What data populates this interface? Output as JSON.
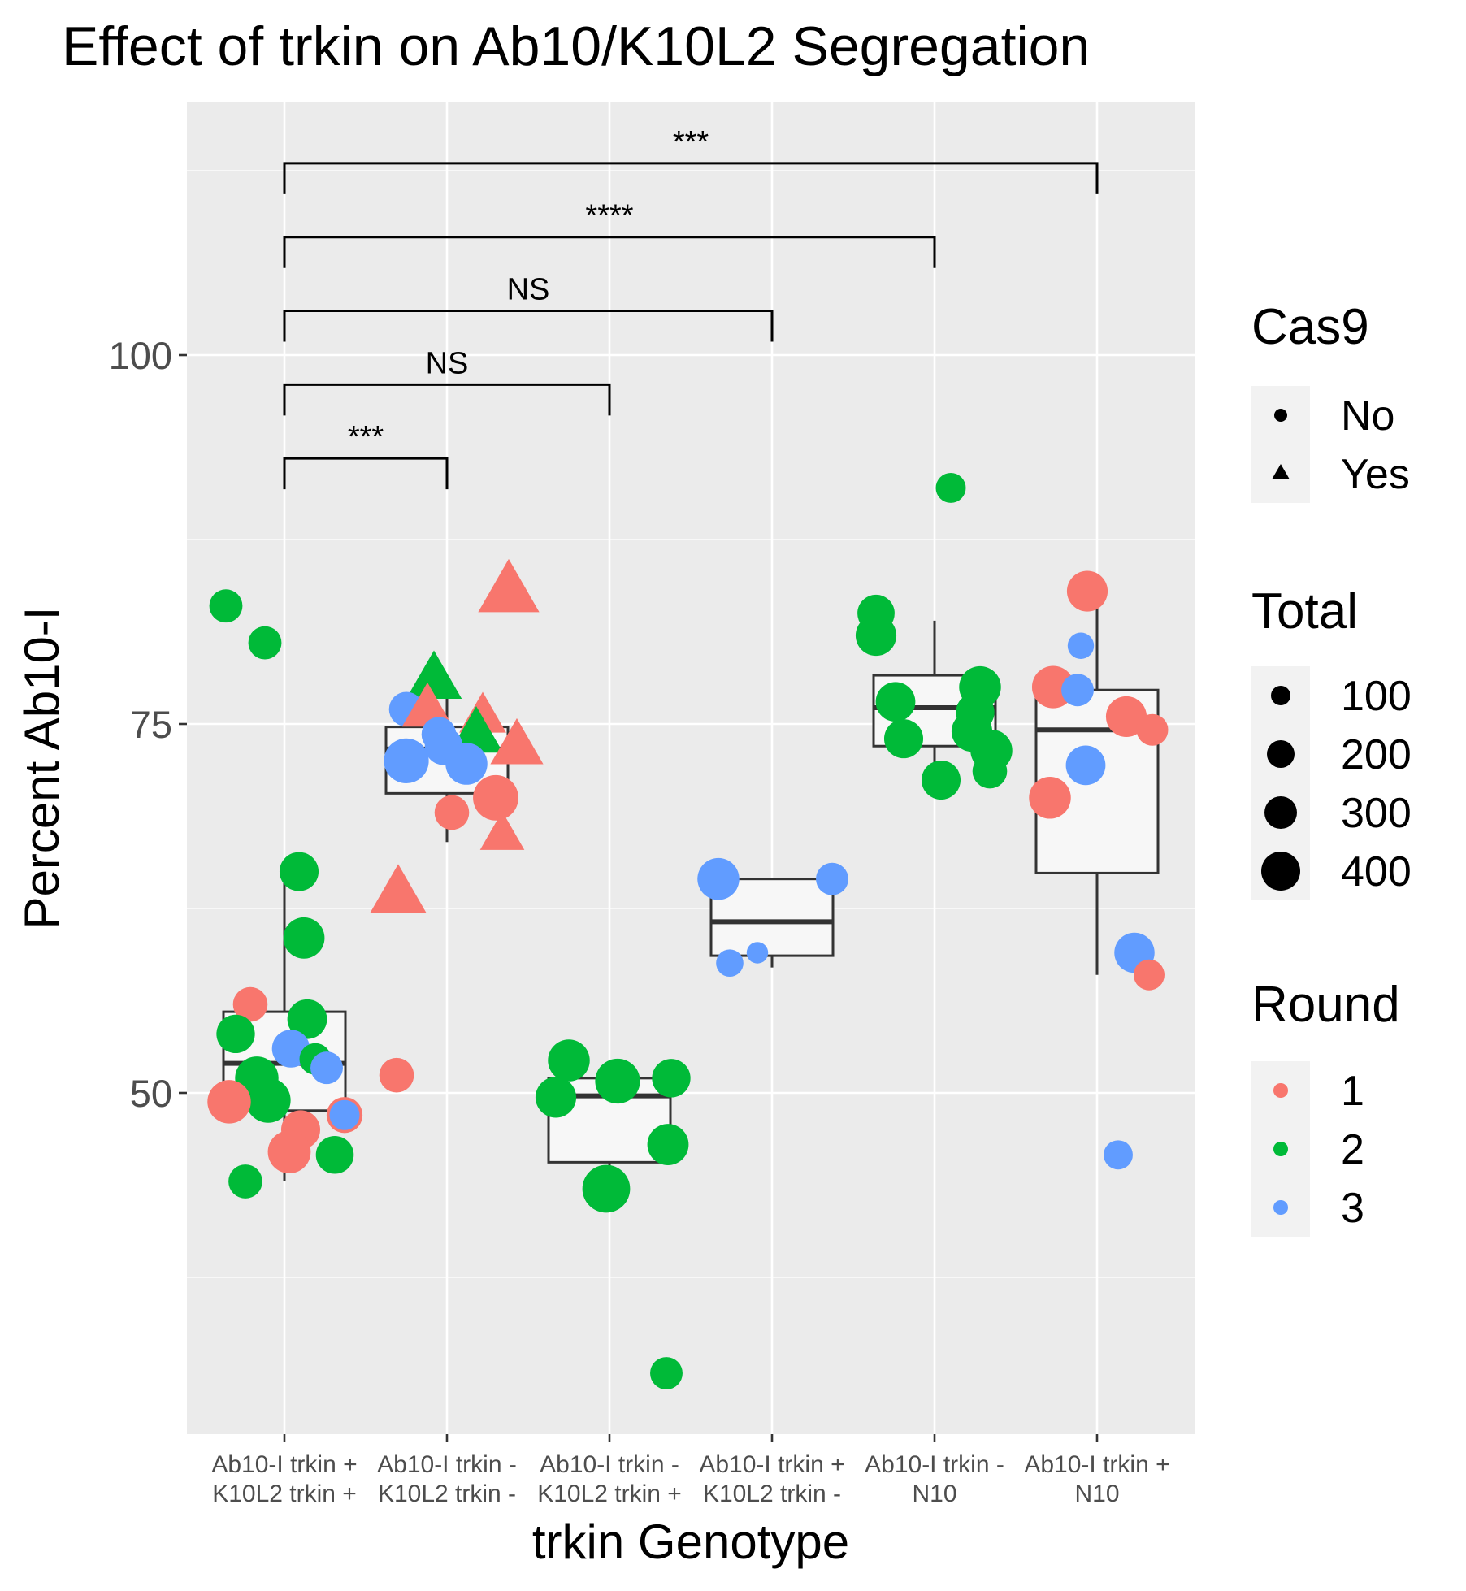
{
  "chart_data": {
    "type": "boxplot",
    "title": "Effect of trkin on Ab10/K10L2 Segregation",
    "xlabel": "trkin Genotype",
    "ylabel": "Percent Ab10-I",
    "ylim": [
      30,
      115
    ],
    "yticks": [
      50,
      75,
      100
    ],
    "categories": [
      [
        "Ab10-I trkin +",
        "K10L2 trkin +"
      ],
      [
        "Ab10-I trkin -",
        "K10L2 trkin -"
      ],
      [
        "Ab10-I trkin -",
        "K10L2 trkin +"
      ],
      [
        "Ab10-I trkin +",
        "K10L2 trkin -"
      ],
      [
        "Ab10-I trkin -",
        "N10"
      ],
      [
        "Ab10-I trkin +",
        "N10"
      ]
    ],
    "boxes": [
      {
        "whisker_low": 44,
        "q1": 48.8,
        "median": 52,
        "q3": 55.5,
        "whisker_high": 65
      },
      {
        "whisker_low": 67,
        "q1": 70.3,
        "median": 73.3,
        "q3": 74.8,
        "whisker_high": 77
      },
      {
        "whisker_low": 44,
        "q1": 45.3,
        "median": 49.8,
        "q3": 51,
        "whisker_high": 52
      },
      {
        "whisker_low": 58.5,
        "q1": 59.3,
        "median": 61.6,
        "q3": 64.5,
        "whisker_high": 64.5
      },
      {
        "whisker_low": 71,
        "q1": 73.5,
        "median": 76.1,
        "q3": 78.3,
        "whisker_high": 82
      },
      {
        "whisker_low": 58,
        "q1": 64.9,
        "median": 74.6,
        "q3": 77.3,
        "whisker_high": 84
      }
    ],
    "round_colors": {
      "1": "#F8766D",
      "2": "#00BA38",
      "3": "#619CFF"
    },
    "points": [
      {
        "x": 1,
        "dx": -0.36,
        "y": 83,
        "round": 2,
        "cas9": "No",
        "total": 160
      },
      {
        "x": 1,
        "dx": -0.12,
        "y": 80.5,
        "round": 2,
        "cas9": "No",
        "total": 160
      },
      {
        "x": 1,
        "dx": 0.09,
        "y": 65,
        "round": 2,
        "cas9": "No",
        "total": 250
      },
      {
        "x": 1,
        "dx": 0.12,
        "y": 60.5,
        "round": 2,
        "cas9": "No",
        "total": 290
      },
      {
        "x": 1,
        "dx": -0.21,
        "y": 56,
        "round": 1,
        "cas9": "No",
        "total": 180
      },
      {
        "x": 1,
        "dx": 0.14,
        "y": 55,
        "round": 2,
        "cas9": "No",
        "total": 260
      },
      {
        "x": 1,
        "dx": -0.3,
        "y": 54,
        "round": 2,
        "cas9": "No",
        "total": 240
      },
      {
        "x": 1,
        "dx": 0.04,
        "y": 53,
        "round": 3,
        "cas9": "No",
        "total": 230
      },
      {
        "x": 1,
        "dx": 0.19,
        "y": 52.3,
        "round": 2,
        "cas9": "No",
        "total": 140
      },
      {
        "x": 1,
        "dx": 0.26,
        "y": 51.7,
        "round": 3,
        "cas9": "No",
        "total": 150
      },
      {
        "x": 1,
        "dx": -0.17,
        "y": 51,
        "round": 2,
        "cas9": "No",
        "total": 330
      },
      {
        "x": 1,
        "dx": -0.1,
        "y": 49.5,
        "round": 2,
        "cas9": "No",
        "total": 360
      },
      {
        "x": 1,
        "dx": -0.34,
        "y": 49.4,
        "round": 1,
        "cas9": "No",
        "total": 330
      },
      {
        "x": 1,
        "dx": 0.37,
        "y": 48.5,
        "round": 1,
        "cas9": "No",
        "total": 200
      },
      {
        "x": 1,
        "dx": 0.37,
        "y": 48.5,
        "round": 3,
        "cas9": "No",
        "total": 120
      },
      {
        "x": 1,
        "dx": 0.1,
        "y": 47.5,
        "round": 1,
        "cas9": "No",
        "total": 250
      },
      {
        "x": 1,
        "dx": 0.03,
        "y": 46,
        "round": 1,
        "cas9": "No",
        "total": 320
      },
      {
        "x": 1,
        "dx": 0.31,
        "y": 45.8,
        "round": 2,
        "cas9": "No",
        "total": 230
      },
      {
        "x": 1,
        "dx": -0.24,
        "y": 44,
        "round": 2,
        "cas9": "No",
        "total": 170
      },
      {
        "x": 2,
        "dx": 0.38,
        "y": 84,
        "round": 1,
        "cas9": "Yes",
        "total": 420
      },
      {
        "x": 2,
        "dx": -0.08,
        "y": 78,
        "round": 2,
        "cas9": "Yes",
        "total": 330
      },
      {
        "x": 2,
        "dx": -0.25,
        "y": 76,
        "round": 3,
        "cas9": "No",
        "total": 180
      },
      {
        "x": 2,
        "dx": -0.12,
        "y": 76,
        "round": 1,
        "cas9": "Yes",
        "total": 260
      },
      {
        "x": 2,
        "dx": 0.22,
        "y": 75.5,
        "round": 1,
        "cas9": "Yes",
        "total": 210
      },
      {
        "x": 2,
        "dx": 0.18,
        "y": 74.3,
        "round": 2,
        "cas9": "Yes",
        "total": 300
      },
      {
        "x": 2,
        "dx": -0.05,
        "y": 74.3,
        "round": 3,
        "cas9": "No",
        "total": 180
      },
      {
        "x": 2,
        "dx": 0.43,
        "y": 73.5,
        "round": 1,
        "cas9": "Yes",
        "total": 290
      },
      {
        "x": 2,
        "dx": -0.02,
        "y": 73.5,
        "round": 3,
        "cas9": "No",
        "total": 230
      },
      {
        "x": 2,
        "dx": -0.25,
        "y": 72.5,
        "round": 3,
        "cas9": "No",
        "total": 360
      },
      {
        "x": 2,
        "dx": 0.12,
        "y": 72.3,
        "round": 3,
        "cas9": "No",
        "total": 300
      },
      {
        "x": 2,
        "dx": 0.3,
        "y": 70,
        "round": 1,
        "cas9": "No",
        "total": 370
      },
      {
        "x": 2,
        "dx": 0.03,
        "y": 69,
        "round": 1,
        "cas9": "No",
        "total": 180
      },
      {
        "x": 2,
        "dx": 0.34,
        "y": 67.5,
        "round": 1,
        "cas9": "Yes",
        "total": 180
      },
      {
        "x": 2,
        "dx": -0.3,
        "y": 63.5,
        "round": 1,
        "cas9": "Yes",
        "total": 340
      },
      {
        "x": 2,
        "dx": -0.31,
        "y": 51.2,
        "round": 1,
        "cas9": "No",
        "total": 180
      },
      {
        "x": 3,
        "dx": 0.35,
        "y": 31,
        "round": 2,
        "cas9": "No",
        "total": 150
      },
      {
        "x": 3,
        "dx": -0.25,
        "y": 52.2,
        "round": 2,
        "cas9": "No",
        "total": 300
      },
      {
        "x": 3,
        "dx": 0.05,
        "y": 50.8,
        "round": 2,
        "cas9": "No",
        "total": 360
      },
      {
        "x": 3,
        "dx": 0.38,
        "y": 51,
        "round": 2,
        "cas9": "No",
        "total": 240
      },
      {
        "x": 3,
        "dx": -0.33,
        "y": 49.7,
        "round": 2,
        "cas9": "No",
        "total": 280
      },
      {
        "x": 3,
        "dx": 0.36,
        "y": 46.5,
        "round": 2,
        "cas9": "No",
        "total": 290
      },
      {
        "x": 3,
        "dx": -0.02,
        "y": 43.5,
        "round": 2,
        "cas9": "No",
        "total": 420
      },
      {
        "x": 4,
        "dx": -0.33,
        "y": 64.5,
        "round": 3,
        "cas9": "No",
        "total": 300
      },
      {
        "x": 4,
        "dx": 0.37,
        "y": 64.5,
        "round": 3,
        "cas9": "No",
        "total": 150
      },
      {
        "x": 4,
        "dx": -0.26,
        "y": 58.8,
        "round": 3,
        "cas9": "No",
        "total": 90
      },
      {
        "x": 4,
        "dx": -0.09,
        "y": 59.5,
        "round": 3,
        "cas9": "No",
        "total": 40
      },
      {
        "x": 5,
        "dx": 0.1,
        "y": 91,
        "round": 2,
        "cas9": "No",
        "total": 120
      },
      {
        "x": 5,
        "dx": -0.36,
        "y": 82.5,
        "round": 2,
        "cas9": "No",
        "total": 220
      },
      {
        "x": 5,
        "dx": -0.36,
        "y": 81,
        "round": 2,
        "cas9": "No",
        "total": 280
      },
      {
        "x": 5,
        "dx": 0.28,
        "y": 77.5,
        "round": 2,
        "cas9": "No",
        "total": 300
      },
      {
        "x": 5,
        "dx": -0.24,
        "y": 76.5,
        "round": 2,
        "cas9": "No",
        "total": 260
      },
      {
        "x": 5,
        "dx": 0.25,
        "y": 75.8,
        "round": 2,
        "cas9": "No",
        "total": 240
      },
      {
        "x": 5,
        "dx": 0.23,
        "y": 74.5,
        "round": 2,
        "cas9": "No",
        "total": 280
      },
      {
        "x": 5,
        "dx": -0.19,
        "y": 74,
        "round": 2,
        "cas9": "No",
        "total": 250
      },
      {
        "x": 5,
        "dx": 0.35,
        "y": 73.2,
        "round": 2,
        "cas9": "No",
        "total": 300
      },
      {
        "x": 5,
        "dx": 0.34,
        "y": 71.8,
        "round": 2,
        "cas9": "No",
        "total": 180
      },
      {
        "x": 5,
        "dx": 0.04,
        "y": 71.2,
        "round": 2,
        "cas9": "No",
        "total": 250
      },
      {
        "x": 6,
        "dx": -0.06,
        "y": 84,
        "round": 1,
        "cas9": "No",
        "total": 280
      },
      {
        "x": 6,
        "dx": -0.1,
        "y": 80.3,
        "round": 3,
        "cas9": "No",
        "total": 80
      },
      {
        "x": 6,
        "dx": -0.27,
        "y": 77.5,
        "round": 1,
        "cas9": "No",
        "total": 310
      },
      {
        "x": 6,
        "dx": -0.12,
        "y": 77.3,
        "round": 3,
        "cas9": "No",
        "total": 150
      },
      {
        "x": 6,
        "dx": 0.18,
        "y": 75.5,
        "round": 1,
        "cas9": "No",
        "total": 280
      },
      {
        "x": 6,
        "dx": 0.34,
        "y": 74.6,
        "round": 1,
        "cas9": "No",
        "total": 140
      },
      {
        "x": 6,
        "dx": -0.07,
        "y": 72.2,
        "round": 3,
        "cas9": "No",
        "total": 260
      },
      {
        "x": 6,
        "dx": -0.29,
        "y": 70,
        "round": 1,
        "cas9": "No",
        "total": 300
      },
      {
        "x": 6,
        "dx": 0.23,
        "y": 59.5,
        "round": 3,
        "cas9": "No",
        "total": 270
      },
      {
        "x": 6,
        "dx": 0.32,
        "y": 58,
        "round": 1,
        "cas9": "No",
        "total": 130
      },
      {
        "x": 6,
        "dx": 0.13,
        "y": 45.8,
        "round": 3,
        "cas9": "No",
        "total": 110
      }
    ],
    "significance": [
      {
        "from": 1,
        "to": 2,
        "y": 93,
        "label": "***"
      },
      {
        "from": 1,
        "to": 3,
        "y": 98,
        "label": "NS"
      },
      {
        "from": 1,
        "to": 4,
        "y": 103,
        "label": "NS"
      },
      {
        "from": 1,
        "to": 5,
        "y": 108,
        "label": "****"
      },
      {
        "from": 1,
        "to": 6,
        "y": 113,
        "label": "***"
      }
    ],
    "legend": {
      "cas9": {
        "title": "Cas9",
        "items": [
          "No",
          "Yes"
        ]
      },
      "total": {
        "title": "Total",
        "items": [
          "100",
          "200",
          "300",
          "400"
        ]
      },
      "round": {
        "title": "Round",
        "items": [
          "1",
          "2",
          "3"
        ]
      }
    }
  }
}
